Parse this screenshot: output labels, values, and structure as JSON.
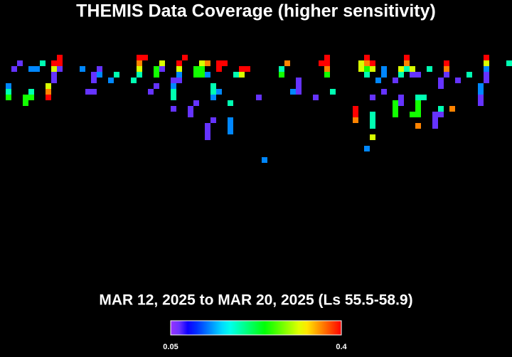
{
  "title": "THEMIS Data Coverage (higher sensitivity)",
  "subtitle": "MAR 12, 2025 to MAR 20, 2025 (Ls 55.5-58.9)",
  "colorbar": {
    "range": [
      0.05,
      0.4
    ]
  },
  "cells": [
    [
      1,
      5,
      0.13
    ],
    [
      1,
      6,
      0.19
    ],
    [
      1,
      7,
      0.25
    ],
    [
      2,
      2,
      0.07
    ],
    [
      3,
      1,
      0.07
    ],
    [
      4,
      7,
      0.25
    ],
    [
      4,
      8,
      0.25
    ],
    [
      5,
      6,
      0.19
    ],
    [
      5,
      7,
      0.25
    ],
    [
      5,
      2,
      0.13
    ],
    [
      6,
      2,
      0.13
    ],
    [
      7,
      1,
      0.19
    ],
    [
      8,
      5,
      0.31
    ],
    [
      8,
      6,
      0.36
    ],
    [
      8,
      7,
      0.4
    ],
    [
      9,
      1,
      0.4
    ],
    [
      10,
      0,
      0.4
    ],
    [
      10,
      1,
      0.4
    ],
    [
      9,
      2,
      0.31
    ],
    [
      10,
      2,
      0.07
    ],
    [
      9,
      3,
      0.07
    ],
    [
      9,
      4,
      0.07
    ],
    [
      14,
      2,
      0.13
    ],
    [
      16,
      3,
      0.07
    ],
    [
      16,
      4,
      0.07
    ],
    [
      15,
      6,
      0.07
    ],
    [
      16,
      6,
      0.07
    ],
    [
      17,
      2,
      0.07
    ],
    [
      17,
      3,
      0.13
    ],
    [
      19,
      4,
      0.13
    ],
    [
      20,
      3,
      0.19
    ],
    [
      23,
      4,
      0.19
    ],
    [
      24,
      0,
      0.4
    ],
    [
      25,
      0,
      0.4
    ],
    [
      24,
      1,
      0.36
    ],
    [
      24,
      2,
      0.31
    ],
    [
      24,
      3,
      0.19
    ],
    [
      26,
      6,
      0.07
    ],
    [
      27,
      5,
      0.07
    ],
    [
      27,
      3,
      0.25
    ],
    [
      27,
      2,
      0.25
    ],
    [
      28,
      1,
      0.31
    ],
    [
      28,
      2,
      0.07
    ],
    [
      30,
      4,
      0.07
    ],
    [
      30,
      5,
      0.13
    ],
    [
      30,
      6,
      0.19
    ],
    [
      30,
      7,
      0.19
    ],
    [
      31,
      1,
      0.4
    ],
    [
      31,
      2,
      0.31
    ],
    [
      31,
      3,
      0.13
    ],
    [
      31,
      4,
      0.07
    ],
    [
      32,
      0,
      0.4
    ],
    [
      30,
      9,
      0.07
    ],
    [
      33,
      9,
      0.07
    ],
    [
      33,
      10,
      0.07
    ],
    [
      34,
      8,
      0.07
    ],
    [
      34,
      2,
      0.25
    ],
    [
      35,
      2,
      0.25
    ],
    [
      34,
      3,
      0.25
    ],
    [
      35,
      3,
      0.25
    ],
    [
      35,
      1,
      0.31
    ],
    [
      36,
      1,
      0.36
    ],
    [
      36,
      3,
      0.13
    ],
    [
      36,
      12,
      0.07
    ],
    [
      36,
      13,
      0.07
    ],
    [
      36,
      14,
      0.07
    ],
    [
      37,
      11,
      0.07
    ],
    [
      37,
      5,
      0.19
    ],
    [
      37,
      6,
      0.19
    ],
    [
      37,
      7,
      0.13
    ],
    [
      38,
      6,
      0.13
    ],
    [
      38,
      1,
      0.4
    ],
    [
      39,
      1,
      0.4
    ],
    [
      38,
      2,
      0.4
    ],
    [
      40,
      8,
      0.19
    ],
    [
      40,
      11,
      0.13
    ],
    [
      40,
      12,
      0.13
    ],
    [
      40,
      13,
      0.13
    ],
    [
      41,
      3,
      0.19
    ],
    [
      42,
      3,
      0.31
    ],
    [
      42,
      2,
      0.4
    ],
    [
      43,
      2,
      0.4
    ],
    [
      45,
      7,
      0.07
    ],
    [
      46,
      18,
      0.13
    ],
    [
      49,
      2,
      0.19
    ],
    [
      50,
      1,
      0.36
    ],
    [
      49,
      3,
      0.25
    ],
    [
      51,
      6,
      0.13
    ],
    [
      52,
      4,
      0.07
    ],
    [
      52,
      5,
      0.07
    ],
    [
      52,
      6,
      0.07
    ],
    [
      55,
      7,
      0.07
    ],
    [
      56,
      1,
      0.4
    ],
    [
      57,
      0,
      0.4
    ],
    [
      57,
      1,
      0.4
    ],
    [
      57,
      2,
      0.36
    ],
    [
      57,
      3,
      0.25
    ],
    [
      58,
      6,
      0.19
    ],
    [
      62,
      9,
      0.4
    ],
    [
      62,
      10,
      0.4
    ],
    [
      62,
      11,
      0.36
    ],
    [
      63,
      1,
      0.31
    ],
    [
      63,
      2,
      0.31
    ],
    [
      64,
      0,
      0.4
    ],
    [
      64,
      1,
      0.36
    ],
    [
      64,
      2,
      0.25
    ],
    [
      65,
      1,
      0.4
    ],
    [
      65,
      2,
      0.31
    ],
    [
      64,
      3,
      0.19
    ],
    [
      65,
      10,
      0.19
    ],
    [
      65,
      11,
      0.19
    ],
    [
      65,
      12,
      0.19
    ],
    [
      65,
      14,
      0.31
    ],
    [
      64,
      16,
      0.13
    ],
    [
      65,
      7,
      0.07
    ],
    [
      66,
      4,
      0.13
    ],
    [
      67,
      2,
      0.13
    ],
    [
      67,
      3,
      0.13
    ],
    [
      67,
      6,
      0.07
    ],
    [
      69,
      4,
      0.07
    ],
    [
      69,
      8,
      0.25
    ],
    [
      69,
      9,
      0.25
    ],
    [
      69,
      10,
      0.25
    ],
    [
      71,
      0,
      0.4
    ],
    [
      71,
      1,
      0.36
    ],
    [
      71,
      2,
      0.19
    ],
    [
      72,
      2,
      0.31
    ],
    [
      72,
      3,
      0.07
    ],
    [
      70,
      2,
      0.31
    ],
    [
      70,
      3,
      0.19
    ],
    [
      70,
      7,
      0.07
    ],
    [
      70,
      8,
      0.07
    ],
    [
      73,
      7,
      0.19
    ],
    [
      74,
      7,
      0.19
    ],
    [
      73,
      8,
      0.25
    ],
    [
      73,
      9,
      0.25
    ],
    [
      72,
      10,
      0.25
    ],
    [
      73,
      10,
      0.25
    ],
    [
      73,
      12,
      0.36
    ],
    [
      75,
      2,
      0.19
    ],
    [
      73,
      3,
      0.07
    ],
    [
      77,
      9,
      0.19
    ],
    [
      76,
      10,
      0.07
    ],
    [
      76,
      11,
      0.07
    ],
    [
      76,
      12,
      0.07
    ],
    [
      77,
      10,
      0.07
    ],
    [
      79,
      9,
      0.36
    ],
    [
      78,
      1,
      0.4
    ],
    [
      78,
      2,
      0.36
    ],
    [
      78,
      3,
      0.07
    ],
    [
      77,
      4,
      0.07
    ],
    [
      77,
      5,
      0.07
    ],
    [
      80,
      4,
      0.07
    ],
    [
      82,
      3,
      0.19
    ],
    [
      85,
      0,
      0.4
    ],
    [
      85,
      1,
      0.31
    ],
    [
      85,
      2,
      0.13
    ],
    [
      85,
      3,
      0.07
    ],
    [
      85,
      4,
      0.07
    ],
    [
      84,
      5,
      0.13
    ],
    [
      84,
      6,
      0.13
    ],
    [
      84,
      7,
      0.07
    ],
    [
      84,
      8,
      0.07
    ],
    [
      89,
      1,
      0.19
    ]
  ]
}
